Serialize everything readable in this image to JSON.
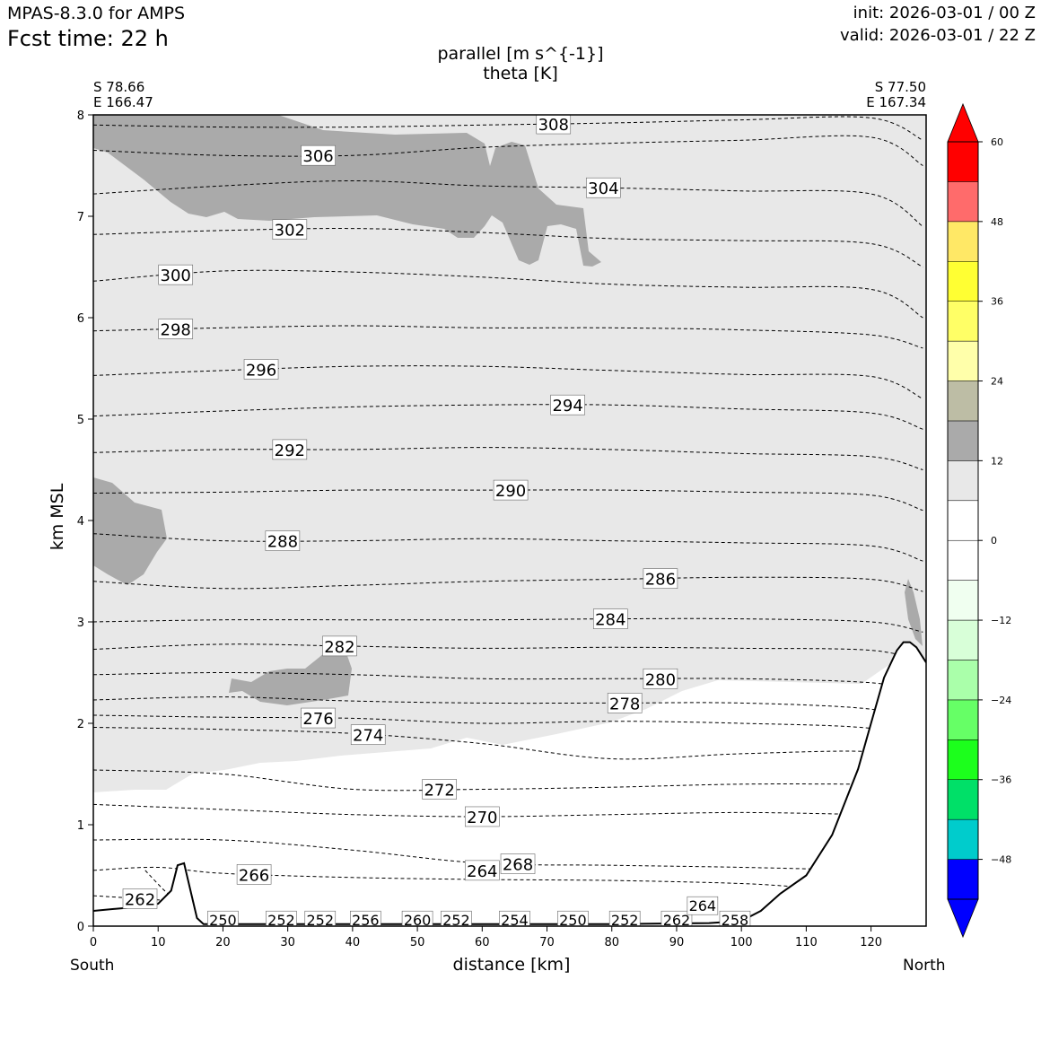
{
  "header": {
    "model": "MPAS-8.3.0 for AMPS",
    "fcst_label": "Fcst time:   22 h",
    "init": "init: 2026-03-01 / 00 Z",
    "valid": "valid: 2026-03-01 / 22 Z"
  },
  "chart_data": {
    "type": "contour-cross-section",
    "title": "parallel [m s^{-1}]",
    "subtitle": "theta [K]",
    "xlabel": "distance [km]",
    "ylabel": "km MSL",
    "x_ticks": [
      0,
      10,
      20,
      30,
      40,
      50,
      60,
      70,
      80,
      90,
      100,
      110,
      120
    ],
    "y_ticks": [
      0,
      1,
      2,
      3,
      4,
      5,
      6,
      7,
      8
    ],
    "xlim": [
      0,
      128.5
    ],
    "ylim": [
      0,
      8
    ],
    "left_end": {
      "lat": "S 78.66",
      "lon": "E 166.47"
    },
    "right_end": {
      "lat": "S 77.50",
      "lon": "E 167.34"
    },
    "left_direction": "South",
    "right_direction": "North",
    "shaded_field": "parallel wind speed",
    "colorbar": {
      "ticks": [
        60,
        48,
        36,
        24,
        12,
        0,
        -12,
        -24,
        -36,
        -48
      ],
      "tick_labels": [
        "60",
        "48",
        "36",
        "24",
        "12",
        "0",
        "−12",
        "−24",
        "−36",
        "−48"
      ],
      "levels": [
        -54,
        -48,
        -42,
        -36,
        -30,
        -24,
        -18,
        -12,
        -6,
        0,
        6,
        12,
        18,
        24,
        30,
        36,
        42,
        48,
        54,
        60
      ],
      "colors": [
        "#0000ff",
        "#00cccc",
        "#00e068",
        "#1cff1c",
        "#66ff66",
        "#aaffaa",
        "#d8ffd8",
        "#f0fff0",
        "#ffffff",
        "#ffffff",
        "#e8e8e8",
        "#aaaaaa",
        "#bdbda5",
        "#ffffaa",
        "#ffff66",
        "#ffff33",
        "#ffe866",
        "#ff6b6b",
        "#ff0000"
      ],
      "under_color": "#0000ff",
      "over_color": "#ff0000"
    },
    "theta_contours": [
      {
        "level": 308,
        "label": "308",
        "x": [
          0,
          20,
          40,
          60,
          80,
          100,
          120,
          128
        ],
        "y": [
          7.9,
          7.88,
          7.88,
          7.9,
          7.92,
          7.95,
          7.97,
          7.75
        ]
      },
      {
        "level": 306,
        "label": "306",
        "x": [
          0,
          20,
          40,
          60,
          80,
          100,
          120,
          128
        ],
        "y": [
          7.65,
          7.6,
          7.6,
          7.68,
          7.72,
          7.75,
          7.78,
          7.5
        ]
      },
      {
        "level": 304,
        "label": "304",
        "x": [
          0,
          20,
          40,
          60,
          80,
          100,
          120,
          128
        ],
        "y": [
          7.22,
          7.3,
          7.35,
          7.3,
          7.28,
          7.25,
          7.22,
          6.9
        ]
      },
      {
        "level": 302,
        "label": "302",
        "x": [
          0,
          20,
          40,
          60,
          80,
          100,
          120,
          128
        ],
        "y": [
          6.82,
          6.86,
          6.88,
          6.84,
          6.78,
          6.76,
          6.73,
          6.5
        ]
      },
      {
        "level": 300,
        "label": "300",
        "x": [
          0,
          20,
          40,
          60,
          80,
          100,
          120,
          128
        ],
        "y": [
          6.36,
          6.46,
          6.45,
          6.4,
          6.33,
          6.3,
          6.28,
          6.0
        ]
      },
      {
        "level": 298,
        "label": "298",
        "x": [
          0,
          20,
          40,
          60,
          80,
          100,
          120,
          128
        ],
        "y": [
          5.87,
          5.9,
          5.92,
          5.9,
          5.9,
          5.88,
          5.83,
          5.7
        ]
      },
      {
        "level": 296,
        "label": "296",
        "x": [
          0,
          20,
          40,
          60,
          80,
          100,
          120,
          128
        ],
        "y": [
          5.43,
          5.48,
          5.52,
          5.52,
          5.48,
          5.44,
          5.42,
          5.2
        ]
      },
      {
        "level": 294,
        "label": "294",
        "x": [
          0,
          20,
          40,
          60,
          80,
          100,
          120,
          128
        ],
        "y": [
          5.03,
          5.08,
          5.12,
          5.14,
          5.14,
          5.1,
          5.06,
          4.9
        ]
      },
      {
        "level": 292,
        "label": "292",
        "x": [
          0,
          20,
          40,
          60,
          80,
          100,
          120,
          128
        ],
        "y": [
          4.67,
          4.7,
          4.7,
          4.72,
          4.7,
          4.66,
          4.63,
          4.5
        ]
      },
      {
        "level": 290,
        "label": "290",
        "x": [
          0,
          20,
          40,
          60,
          80,
          100,
          120,
          128
        ],
        "y": [
          4.27,
          4.28,
          4.3,
          4.3,
          4.3,
          4.28,
          4.25,
          4.1
        ]
      },
      {
        "level": 288,
        "label": "288",
        "x": [
          0,
          20,
          40,
          60,
          80,
          100,
          120,
          128
        ],
        "y": [
          3.87,
          3.8,
          3.8,
          3.82,
          3.8,
          3.78,
          3.75,
          3.6
        ]
      },
      {
        "level": 286,
        "label": "286",
        "x": [
          0,
          20,
          40,
          60,
          80,
          100,
          120,
          128
        ],
        "y": [
          3.4,
          3.33,
          3.36,
          3.4,
          3.42,
          3.44,
          3.42,
          3.3
        ]
      },
      {
        "level": 284,
        "label": "284",
        "x": [
          0,
          20,
          40,
          60,
          80,
          100,
          120,
          128
        ],
        "y": [
          3.0,
          3.02,
          3.02,
          3.02,
          3.03,
          3.03,
          3.0,
          2.9
        ]
      },
      {
        "level": 282,
        "label": "282",
        "x": [
          0,
          20,
          40,
          60,
          80,
          100,
          120,
          128
        ],
        "y": [
          2.73,
          2.78,
          2.76,
          2.74,
          2.75,
          2.74,
          2.72,
          2.6
        ]
      },
      {
        "level": 280,
        "label": "280",
        "x": [
          0,
          20,
          40,
          60,
          80,
          100,
          120,
          128
        ],
        "y": [
          2.48,
          2.5,
          2.48,
          2.44,
          2.44,
          2.44,
          2.4,
          2.3
        ]
      },
      {
        "level": 278,
        "label": "278",
        "x": [
          0,
          20,
          40,
          60,
          80,
          100,
          120,
          128
        ],
        "y": [
          2.23,
          2.26,
          2.22,
          2.2,
          2.2,
          2.2,
          2.14,
          2.0
        ]
      },
      {
        "level": 276,
        "label": "276",
        "x": [
          0,
          20,
          40,
          60,
          80,
          100,
          120,
          128
        ],
        "y": [
          2.08,
          2.06,
          2.05,
          2.0,
          2.02,
          2.0,
          1.95,
          1.8
        ]
      },
      {
        "level": 274,
        "label": "274",
        "x": [
          0,
          20,
          40,
          60,
          80,
          100,
          120,
          128
        ],
        "y": [
          1.96,
          1.94,
          1.9,
          1.8,
          1.65,
          1.7,
          1.72,
          1.6
        ]
      },
      {
        "level": 272,
        "label": "272",
        "x": [
          0,
          20,
          40,
          60,
          80,
          100,
          120,
          128
        ],
        "y": [
          1.54,
          1.5,
          1.35,
          1.35,
          1.37,
          1.4,
          1.4,
          1.4
        ]
      },
      {
        "level": 270,
        "label": "270",
        "x": [
          0,
          20,
          40,
          60,
          80,
          100,
          120,
          128
        ],
        "y": [
          1.2,
          1.15,
          1.1,
          1.08,
          1.1,
          1.12,
          1.1,
          1.1
        ]
      },
      {
        "level": 268,
        "label": "268",
        "x": [
          0,
          20,
          40,
          60,
          80,
          100,
          120
        ],
        "y": [
          0.85,
          0.85,
          0.75,
          0.62,
          0.6,
          0.58,
          0.55
        ]
      },
      {
        "level": 266,
        "label": "266",
        "x": [
          0,
          10,
          20,
          40,
          60,
          80,
          100,
          110
        ],
        "y": [
          0.55,
          0.58,
          0.52,
          0.48,
          0.46,
          0.45,
          0.42,
          0.38
        ]
      },
      {
        "level": 264,
        "label": "264",
        "x": [
          8,
          11,
          13
        ],
        "y": [
          0.55,
          0.35,
          0.25
        ]
      },
      {
        "level": 262,
        "label": "262",
        "x": [
          0,
          5,
          12
        ],
        "y": [
          0.3,
          0.28,
          0.25
        ]
      }
    ],
    "surface_labels": [
      "250",
      "252",
      "252",
      "256",
      "260",
      "252",
      "254",
      "250",
      "252",
      "262",
      "264",
      "258"
    ],
    "terrain": {
      "x": [
        0,
        5,
        10,
        12,
        13,
        14,
        15,
        16,
        17,
        20,
        40,
        60,
        80,
        95,
        100,
        103,
        106,
        110,
        114,
        118,
        120,
        122,
        124,
        125,
        126,
        127,
        128.5
      ],
      "y": [
        0.15,
        0.18,
        0.22,
        0.35,
        0.6,
        0.62,
        0.35,
        0.08,
        0.02,
        0.02,
        0.02,
        0.02,
        0.02,
        0.03,
        0.05,
        0.15,
        0.32,
        0.5,
        0.9,
        1.55,
        2.0,
        2.45,
        2.72,
        2.8,
        2.8,
        2.75,
        2.6
      ]
    }
  }
}
